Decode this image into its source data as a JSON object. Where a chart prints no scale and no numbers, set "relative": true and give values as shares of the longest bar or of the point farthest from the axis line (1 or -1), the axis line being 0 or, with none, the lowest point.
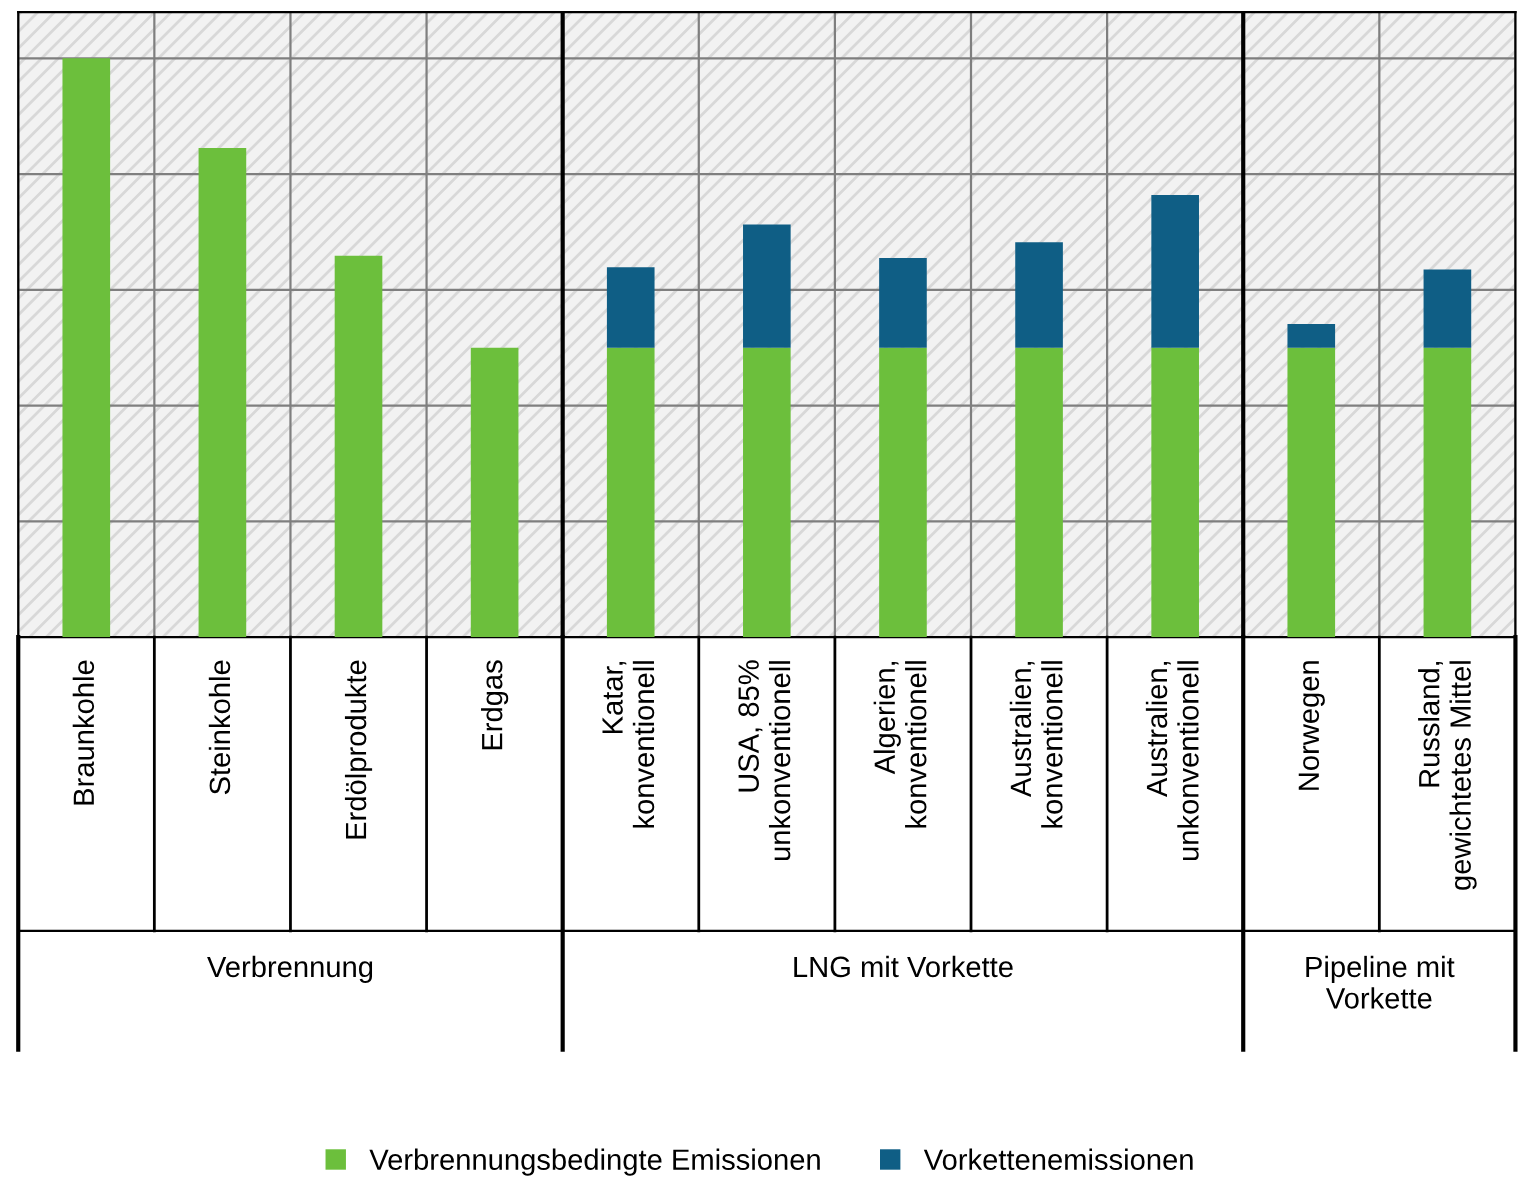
{
  "chart_data": {
    "type": "bar",
    "stacked": true,
    "relative": true,
    "grid": true,
    "legend": "bottom",
    "tick_labels": "x",
    "categories": [
      "Braunkohle",
      "Steinkohle",
      "Erdölprodukte",
      "Erdgas",
      "Katar,\nkonventionell",
      "USA, 85%\nunkonventionell",
      "Algerien,\nkonventionell",
      "Australien,\nkonventionell",
      "Australien,\nunkonventionell",
      "Norwegen",
      "Russland,\ngewichtetes Mittel"
    ],
    "series": [
      {
        "name": "Verbrennungsbedingte Emissionen",
        "color": "#6cbf3c",
        "values": [
          1.0,
          0.845,
          0.659,
          0.5,
          0.5,
          0.5,
          0.5,
          0.5,
          0.5,
          0.5,
          0.5
        ]
      },
      {
        "name": "Vorkettenemissionen",
        "color": "#0f5e85",
        "values": [
          null,
          null,
          null,
          null,
          0.139,
          0.213,
          0.155,
          0.182,
          0.264,
          0.041,
          0.135
        ]
      }
    ],
    "annotations": [
      "Verbrennung",
      "LNG mit Vorkette",
      "Pipeline mit\nVorkette"
    ]
  }
}
